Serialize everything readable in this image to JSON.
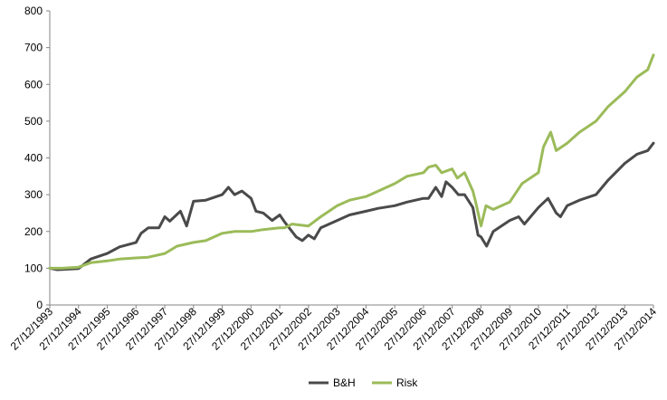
{
  "chart_data": {
    "type": "line",
    "title": "",
    "xlabel": "",
    "ylabel": "",
    "ylim": [
      0,
      800
    ],
    "y_ticks": [
      0,
      100,
      200,
      300,
      400,
      500,
      600,
      700,
      800
    ],
    "x_tick_labels": [
      "27/12/1993",
      "27/12/1994",
      "27/12/1995",
      "27/12/1996",
      "27/12/1997",
      "27/12/1998",
      "27/12/1999",
      "27/12/2000",
      "27/12/2001",
      "27/12/2002",
      "27/12/2003",
      "27/12/2004",
      "27/12/2005",
      "27/12/2006",
      "27/12/2007",
      "27/12/2008",
      "27/12/2009",
      "27/12/2010",
      "27/12/2011",
      "27/12/2012",
      "27/12/2013",
      "27/12/2014"
    ],
    "x_range": [
      "1993-12-27",
      "2014-12-27"
    ],
    "grid": false,
    "legend_position": "bottom",
    "series": [
      {
        "name": "B&H",
        "color": "#4a4a4a",
        "x": [
          "1993-12-27",
          "1994-04-01",
          "1994-07-01",
          "1994-12-27",
          "1995-06-01",
          "1995-12-27",
          "1996-06-01",
          "1996-12-27",
          "1997-03-01",
          "1997-06-01",
          "1997-10-15",
          "1997-12-27",
          "1998-03-01",
          "1998-07-15",
          "1998-10-01",
          "1998-12-27",
          "1999-06-01",
          "1999-12-27",
          "2000-03-15",
          "2000-06-01",
          "2000-09-01",
          "2000-12-27",
          "2001-03-01",
          "2001-06-01",
          "2001-09-21",
          "2001-12-27",
          "2002-03-01",
          "2002-07-24",
          "2002-10-09",
          "2002-12-27",
          "2003-03-11",
          "2003-06-01",
          "2003-12-27",
          "2004-06-01",
          "2004-12-27",
          "2005-06-01",
          "2005-12-27",
          "2006-06-01",
          "2006-12-27",
          "2007-03-01",
          "2007-06-01",
          "2007-08-15",
          "2007-10-09",
          "2007-12-27",
          "2008-03-15",
          "2008-06-01",
          "2008-09-15",
          "2008-11-20",
          "2008-12-27",
          "2009-03-09",
          "2009-06-01",
          "2009-12-27",
          "2010-04-20",
          "2010-07-01",
          "2010-12-27",
          "2011-04-29",
          "2011-08-10",
          "2011-10-03",
          "2011-12-27",
          "2012-06-01",
          "2012-12-27",
          "2013-06-01",
          "2013-12-27",
          "2014-06-01",
          "2014-10-15",
          "2014-12-27"
        ],
        "values": [
          100,
          96,
          97,
          99,
          125,
          140,
          158,
          170,
          195,
          210,
          210,
          240,
          228,
          255,
          215,
          282,
          285,
          300,
          320,
          300,
          310,
          290,
          255,
          250,
          230,
          245,
          225,
          185,
          175,
          190,
          180,
          210,
          230,
          245,
          255,
          263,
          270,
          280,
          290,
          290,
          320,
          295,
          335,
          320,
          300,
          300,
          265,
          190,
          185,
          160,
          200,
          230,
          240,
          220,
          265,
          290,
          250,
          240,
          270,
          285,
          300,
          340,
          385,
          410,
          420,
          440
        ]
      },
      {
        "name": "Risk",
        "color": "#9bbb59",
        "x": [
          "1993-12-27",
          "1994-06-01",
          "1994-12-27",
          "1995-06-01",
          "1995-12-27",
          "1996-06-01",
          "1996-12-27",
          "1997-06-01",
          "1997-12-27",
          "1998-06-01",
          "1998-12-27",
          "1999-06-01",
          "1999-12-27",
          "2000-06-01",
          "2000-12-27",
          "2001-06-01",
          "2001-12-27",
          "2002-03-01",
          "2002-06-01",
          "2002-12-27",
          "2003-06-01",
          "2003-12-27",
          "2004-06-01",
          "2004-12-27",
          "2005-06-01",
          "2005-12-27",
          "2006-06-01",
          "2006-12-27",
          "2007-03-01",
          "2007-06-01",
          "2007-08-15",
          "2007-12-27",
          "2008-03-01",
          "2008-06-01",
          "2008-09-15",
          "2008-10-20",
          "2008-12-27",
          "2009-03-01",
          "2009-06-01",
          "2009-12-27",
          "2010-06-01",
          "2010-12-27",
          "2011-03-01",
          "2011-06-01",
          "2011-08-10",
          "2011-12-27",
          "2012-06-01",
          "2012-12-27",
          "2013-06-01",
          "2013-12-27",
          "2014-06-01",
          "2014-10-15",
          "2014-12-27"
        ],
        "values": [
          100,
          100,
          103,
          115,
          120,
          125,
          128,
          130,
          140,
          160,
          170,
          175,
          195,
          200,
          200,
          205,
          210,
          210,
          220,
          215,
          240,
          270,
          285,
          295,
          310,
          330,
          350,
          360,
          375,
          380,
          360,
          370,
          345,
          360,
          310,
          280,
          215,
          270,
          260,
          280,
          330,
          360,
          430,
          470,
          420,
          440,
          470,
          500,
          540,
          580,
          620,
          640,
          680
        ]
      }
    ]
  }
}
